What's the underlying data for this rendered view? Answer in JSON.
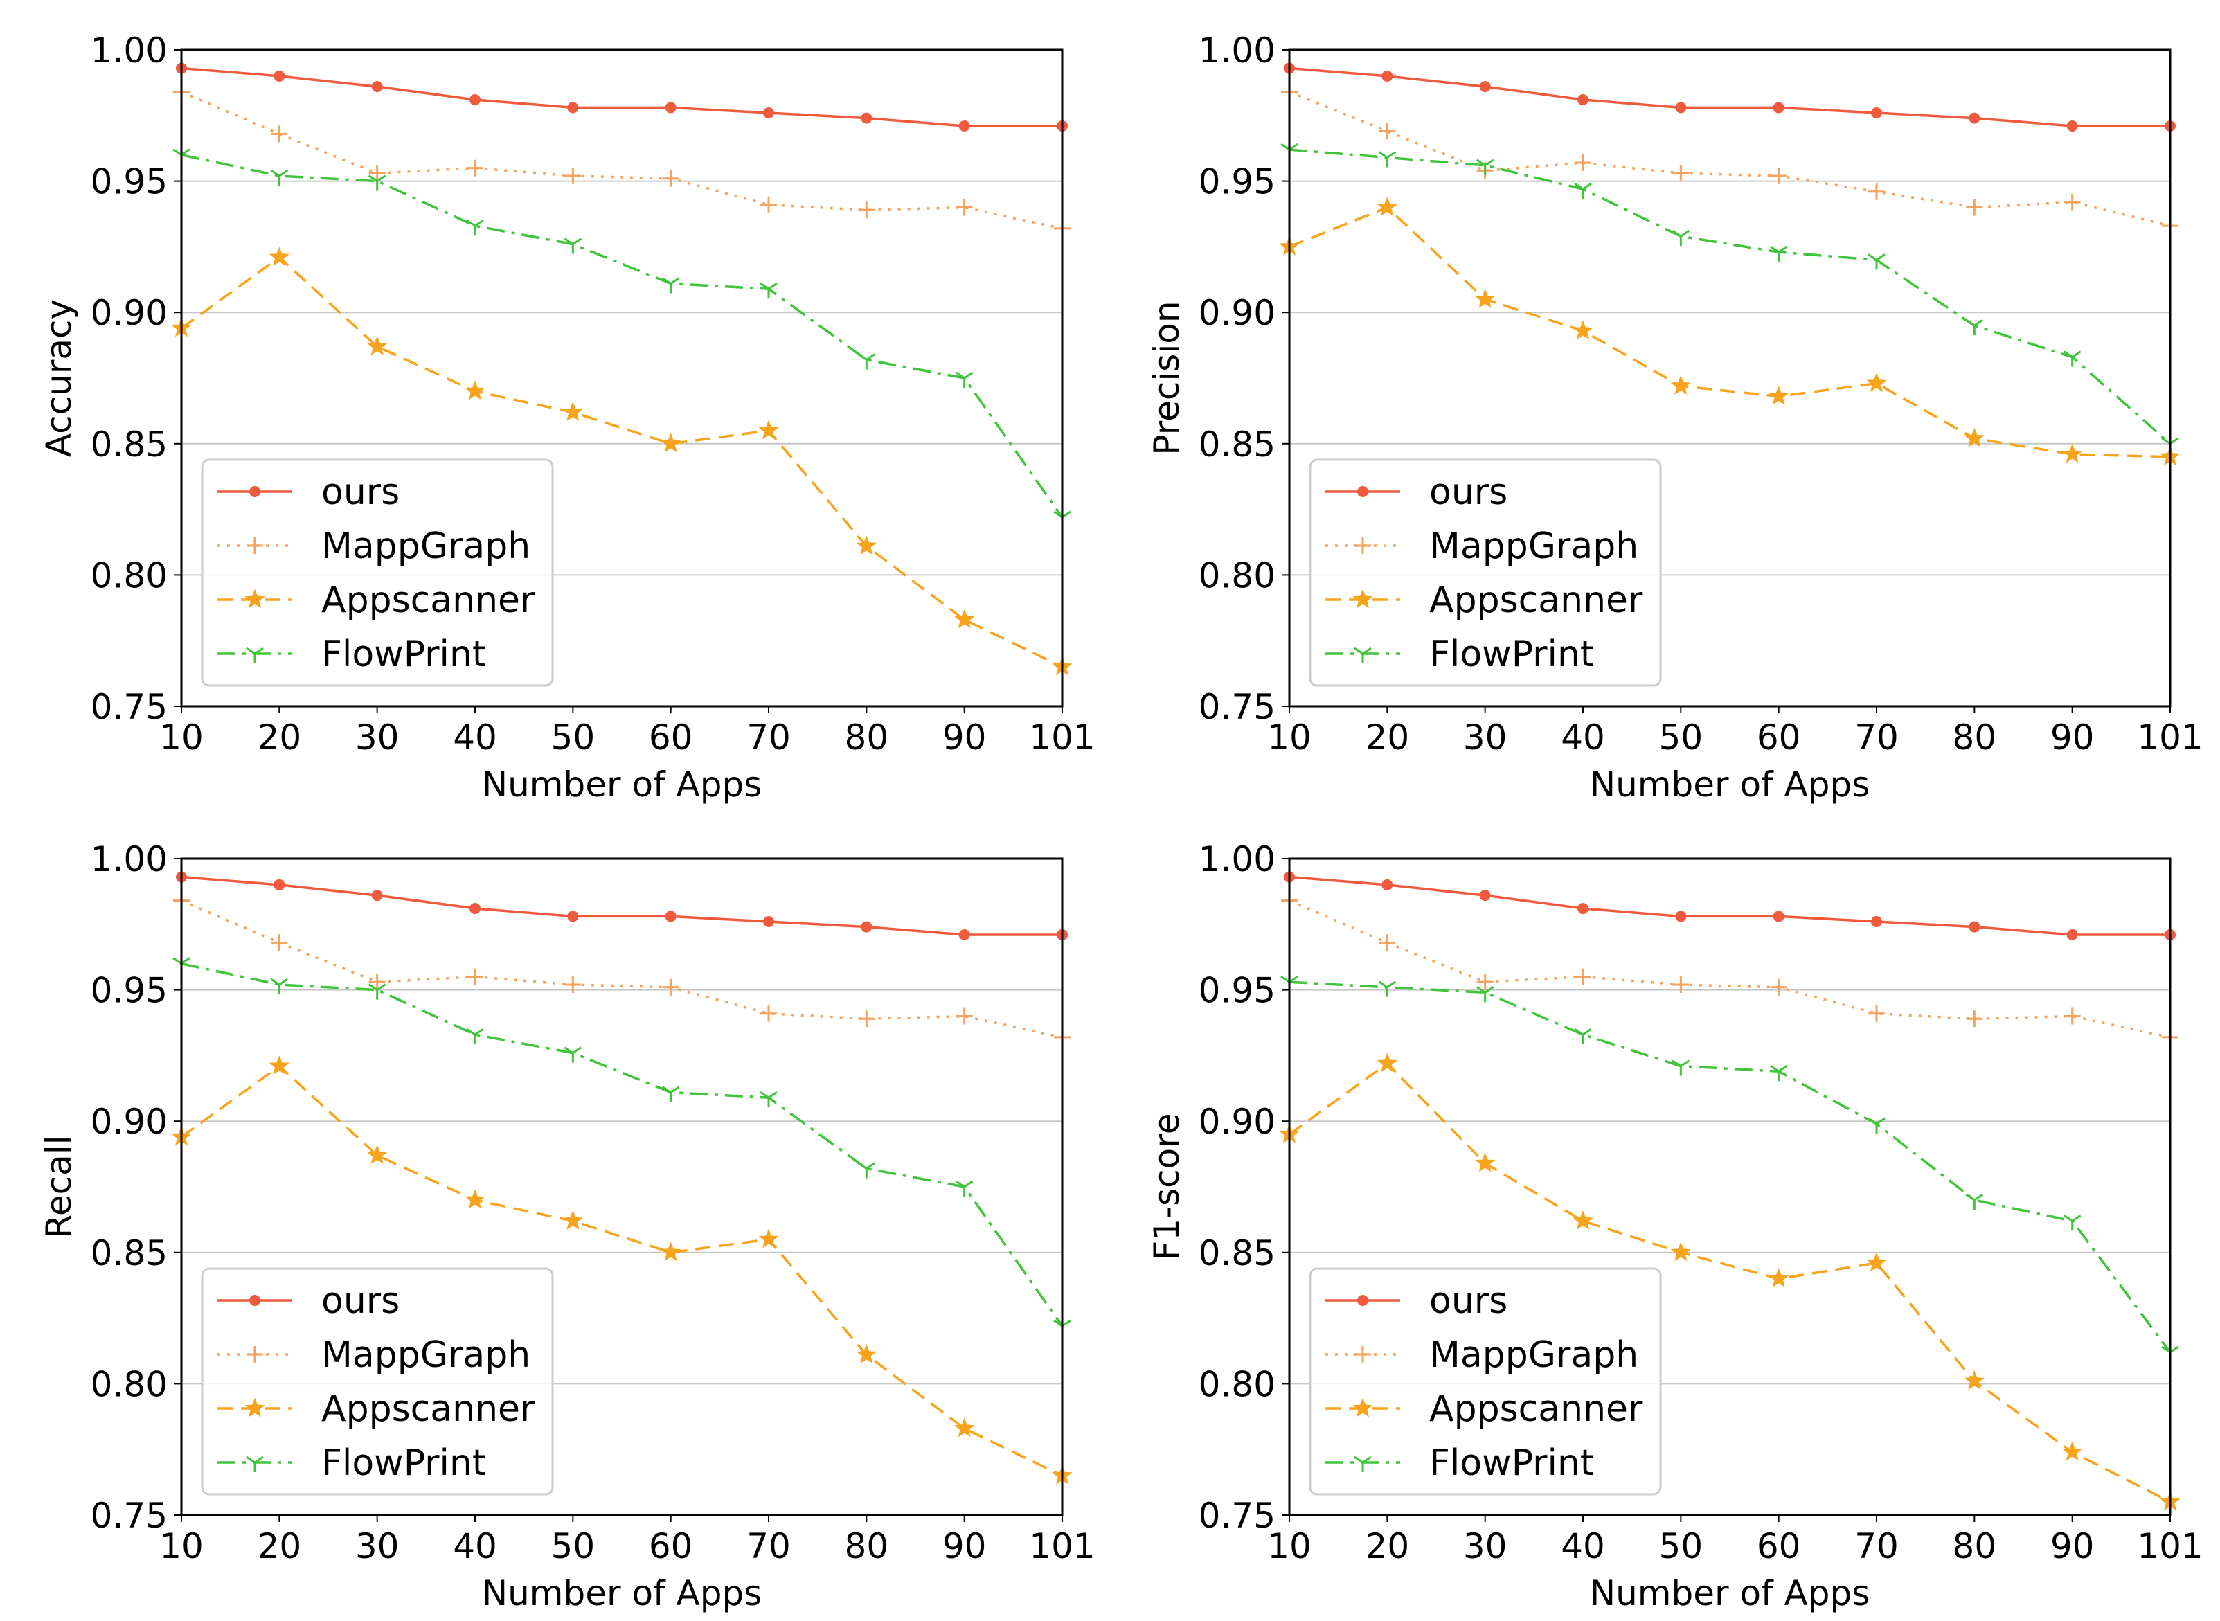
{
  "chart_data": [
    {
      "type": "line",
      "ylabel": "Accuracy",
      "xlabel": "Number of Apps",
      "ylim": [
        0.75,
        1.0
      ],
      "yticks": [
        "0.75",
        "0.80",
        "0.85",
        "0.90",
        "0.95",
        "1.00"
      ],
      "categories": [
        "10",
        "20",
        "30",
        "40",
        "50",
        "60",
        "70",
        "80",
        "90",
        "101"
      ],
      "legend_position": "lower-left",
      "grid": "horizontal",
      "series": [
        {
          "name": "ours",
          "values": [
            0.993,
            0.99,
            0.986,
            0.981,
            0.978,
            0.978,
            0.976,
            0.974,
            0.971,
            0.971
          ]
        },
        {
          "name": "MappGraph",
          "values": [
            0.984,
            0.968,
            0.953,
            0.955,
            0.952,
            0.951,
            0.941,
            0.939,
            0.94,
            0.932
          ]
        },
        {
          "name": "Appscanner",
          "values": [
            0.894,
            0.921,
            0.887,
            0.87,
            0.862,
            0.85,
            0.855,
            0.811,
            0.783,
            0.765
          ]
        },
        {
          "name": "FlowPrint",
          "values": [
            0.96,
            0.952,
            0.95,
            0.933,
            0.926,
            0.911,
            0.909,
            0.882,
            0.875,
            0.822
          ]
        }
      ]
    },
    {
      "type": "line",
      "ylabel": "Precision",
      "xlabel": "Number of Apps",
      "ylim": [
        0.75,
        1.0
      ],
      "yticks": [
        "0.75",
        "0.80",
        "0.85",
        "0.90",
        "0.95",
        "1.00"
      ],
      "categories": [
        "10",
        "20",
        "30",
        "40",
        "50",
        "60",
        "70",
        "80",
        "90",
        "101"
      ],
      "legend_position": "lower-left",
      "grid": "horizontal",
      "series": [
        {
          "name": "ours",
          "values": [
            0.993,
            0.99,
            0.986,
            0.981,
            0.978,
            0.978,
            0.976,
            0.974,
            0.971,
            0.971
          ]
        },
        {
          "name": "MappGraph",
          "values": [
            0.984,
            0.969,
            0.954,
            0.957,
            0.953,
            0.952,
            0.946,
            0.94,
            0.942,
            0.933
          ]
        },
        {
          "name": "Appscanner",
          "values": [
            0.925,
            0.94,
            0.905,
            0.893,
            0.872,
            0.868,
            0.873,
            0.852,
            0.846,
            0.845
          ]
        },
        {
          "name": "FlowPrint",
          "values": [
            0.962,
            0.959,
            0.956,
            0.947,
            0.929,
            0.923,
            0.92,
            0.895,
            0.883,
            0.85
          ]
        }
      ]
    },
    {
      "type": "line",
      "ylabel": "Recall",
      "xlabel": "Number of Apps",
      "ylim": [
        0.75,
        1.0
      ],
      "yticks": [
        "0.75",
        "0.80",
        "0.85",
        "0.90",
        "0.95",
        "1.00"
      ],
      "categories": [
        "10",
        "20",
        "30",
        "40",
        "50",
        "60",
        "70",
        "80",
        "90",
        "101"
      ],
      "legend_position": "lower-left",
      "grid": "horizontal",
      "series": [
        {
          "name": "ours",
          "values": [
            0.993,
            0.99,
            0.986,
            0.981,
            0.978,
            0.978,
            0.976,
            0.974,
            0.971,
            0.971
          ]
        },
        {
          "name": "MappGraph",
          "values": [
            0.984,
            0.968,
            0.953,
            0.955,
            0.952,
            0.951,
            0.941,
            0.939,
            0.94,
            0.932
          ]
        },
        {
          "name": "Appscanner",
          "values": [
            0.894,
            0.921,
            0.887,
            0.87,
            0.862,
            0.85,
            0.855,
            0.811,
            0.783,
            0.765
          ]
        },
        {
          "name": "FlowPrint",
          "values": [
            0.96,
            0.952,
            0.95,
            0.933,
            0.926,
            0.911,
            0.909,
            0.882,
            0.875,
            0.822
          ]
        }
      ]
    },
    {
      "type": "line",
      "ylabel": "F1-score",
      "xlabel": "Number of Apps",
      "ylim": [
        0.75,
        1.0
      ],
      "yticks": [
        "0.75",
        "0.80",
        "0.85",
        "0.90",
        "0.95",
        "1.00"
      ],
      "categories": [
        "10",
        "20",
        "30",
        "40",
        "50",
        "60",
        "70",
        "80",
        "90",
        "101"
      ],
      "legend_position": "lower-left",
      "grid": "horizontal",
      "series": [
        {
          "name": "ours",
          "values": [
            0.993,
            0.99,
            0.986,
            0.981,
            0.978,
            0.978,
            0.976,
            0.974,
            0.971,
            0.971
          ]
        },
        {
          "name": "MappGraph",
          "values": [
            0.984,
            0.968,
            0.953,
            0.955,
            0.952,
            0.951,
            0.941,
            0.939,
            0.94,
            0.932
          ]
        },
        {
          "name": "Appscanner",
          "values": [
            0.895,
            0.922,
            0.884,
            0.862,
            0.85,
            0.84,
            0.846,
            0.801,
            0.774,
            0.755
          ]
        },
        {
          "name": "FlowPrint",
          "values": [
            0.953,
            0.951,
            0.949,
            0.933,
            0.921,
            0.919,
            0.899,
            0.87,
            0.862,
            0.812
          ]
        }
      ]
    }
  ],
  "series_styles": [
    {
      "name": "ours",
      "color": "#f05a3c",
      "dash": "solid",
      "marker": "circle"
    },
    {
      "name": "MappGraph",
      "color": "#f4a25c",
      "dash": "dotted",
      "marker": "plus"
    },
    {
      "name": "Appscanner",
      "color": "#f7a31b",
      "dash": "dashed",
      "marker": "star"
    },
    {
      "name": "FlowPrint",
      "color": "#3fc43a",
      "dash": "dashdot",
      "marker": "tri_down"
    }
  ],
  "colors": {
    "grid": "#c8c8c8",
    "axis": "#000000",
    "legend_border": "#cccccc"
  }
}
